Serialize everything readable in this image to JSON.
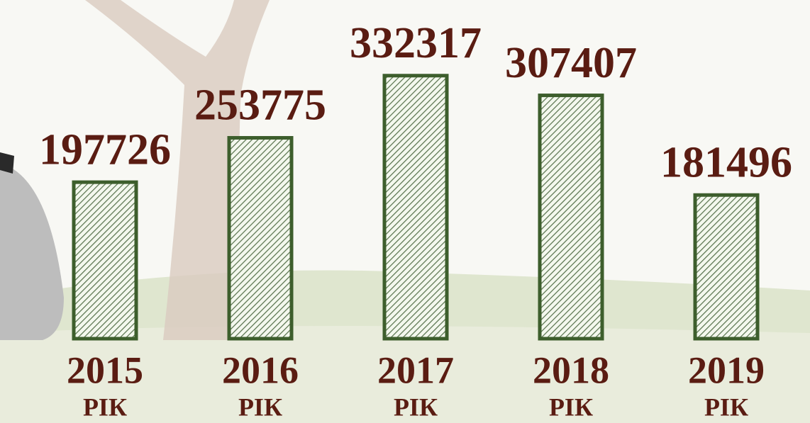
{
  "chart_data": {
    "type": "bar",
    "categories": [
      "2015",
      "2016",
      "2017",
      "2018",
      "2019"
    ],
    "category_sublabels": [
      "РІК",
      "РІК",
      "РІК",
      "РІК",
      "РІК"
    ],
    "values": [
      197726,
      253775,
      332317,
      307407,
      181496
    ],
    "color": "#3d5e2c",
    "ylim": [
      0,
      350000
    ]
  }
}
